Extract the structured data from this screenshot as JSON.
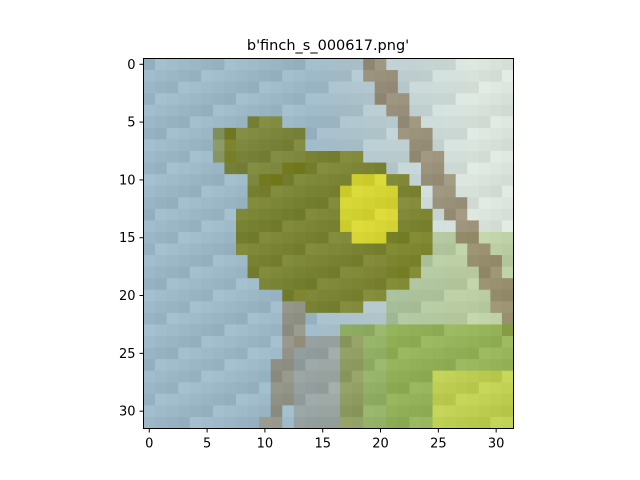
{
  "title": "b'finch_s_000617.png'",
  "image": {
    "kind": "pixelated photo",
    "subject": "yellow-green finch perched on a branch",
    "grid_size": [
      32,
      32
    ],
    "colors": {
      "sky": "#9cb7c6",
      "bird_olive": "#737a1a",
      "bird_yellow": "#e3e133",
      "branch": "#8b7a5c",
      "leaves": "#86a83a",
      "bright_leaf": "#d8df4c",
      "pale_bg": "#d9e3dc"
    }
  },
  "axes": {
    "x_ticks": [
      "0",
      "5",
      "10",
      "15",
      "20",
      "25",
      "30"
    ],
    "y_ticks": [
      "0",
      "5",
      "10",
      "15",
      "20",
      "25",
      "30"
    ],
    "x_range": [
      -0.5,
      31.5
    ],
    "y_range": [
      -0.5,
      31.5
    ],
    "y_inverted": true
  }
}
